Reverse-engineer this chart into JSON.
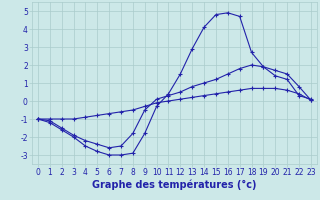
{
  "title": "Graphe des températures (°c)",
  "background_color": "#cce8e8",
  "grid_color": "#aacccc",
  "line_color": "#2222aa",
  "marker": "+",
  "xlim": [
    -0.5,
    23.5
  ],
  "ylim": [
    -3.5,
    5.5
  ],
  "yticks": [
    -3,
    -2,
    -1,
    0,
    1,
    2,
    3,
    4,
    5
  ],
  "xticks": [
    0,
    1,
    2,
    3,
    4,
    5,
    6,
    7,
    8,
    9,
    10,
    11,
    12,
    13,
    14,
    15,
    16,
    17,
    18,
    19,
    20,
    21,
    22,
    23
  ],
  "line1_x": [
    0,
    1,
    2,
    3,
    4,
    5,
    6,
    7,
    8,
    9,
    10,
    11,
    12,
    13,
    14,
    15,
    16,
    17,
    18,
    19,
    20,
    21,
    22,
    23
  ],
  "line1_y": [
    -1.0,
    -1.2,
    -1.6,
    -2.0,
    -2.5,
    -2.8,
    -3.0,
    -3.0,
    -2.9,
    -1.8,
    -0.3,
    0.4,
    1.5,
    2.9,
    4.1,
    4.8,
    4.9,
    4.7,
    2.7,
    1.9,
    1.4,
    1.2,
    0.3,
    0.1
  ],
  "line2_x": [
    0,
    1,
    2,
    3,
    4,
    5,
    6,
    7,
    8,
    9,
    10,
    11,
    12,
    13,
    14,
    15,
    16,
    17,
    18,
    19,
    20,
    21,
    22,
    23
  ],
  "line2_y": [
    -1.0,
    -1.1,
    -1.5,
    -1.9,
    -2.2,
    -2.4,
    -2.6,
    -2.5,
    -1.8,
    -0.5,
    0.1,
    0.3,
    0.5,
    0.8,
    1.0,
    1.2,
    1.5,
    1.8,
    2.0,
    1.9,
    1.7,
    1.5,
    0.8,
    0.05
  ],
  "line3_x": [
    0,
    1,
    2,
    3,
    4,
    5,
    6,
    7,
    8,
    9,
    10,
    11,
    12,
    13,
    14,
    15,
    16,
    17,
    18,
    19,
    20,
    21,
    22,
    23
  ],
  "line3_y": [
    -1.0,
    -1.0,
    -1.0,
    -1.0,
    -0.9,
    -0.8,
    -0.7,
    -0.6,
    -0.5,
    -0.3,
    -0.1,
    0.0,
    0.1,
    0.2,
    0.3,
    0.4,
    0.5,
    0.6,
    0.7,
    0.7,
    0.7,
    0.6,
    0.4,
    0.05
  ],
  "title_fontsize": 7,
  "tick_fontsize": 5.5,
  "xlabel_fontsize": 7
}
